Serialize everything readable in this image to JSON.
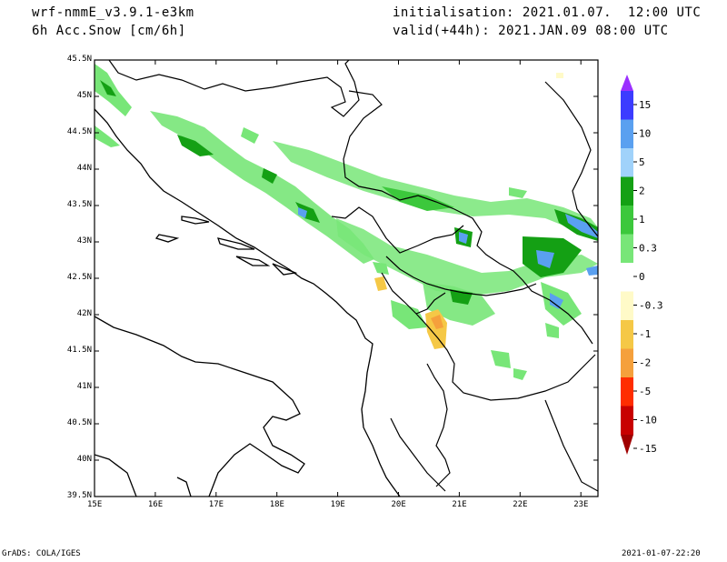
{
  "header": {
    "model": "wrf-nmmE_v3.9.1-e3km",
    "variable": "6h Acc.Snow [cm/6h]",
    "init": "initialisation: 2021.01.07.  12:00 UTC",
    "valid": "valid(+44h): 2021.JAN.09 08:00 UTC"
  },
  "footer": {
    "credit": "GrADS: COLA/IGES",
    "timestamp": "2021-01-07-22:20"
  },
  "map": {
    "lon_labels": [
      "15E",
      "16E",
      "17E",
      "18E",
      "19E",
      "20E",
      "21E",
      "22E",
      "23E"
    ],
    "lat_labels": [
      "45.5N",
      "45N",
      "44.5N",
      "44N",
      "43.5N",
      "43N",
      "42.5N",
      "42N",
      "41.5N",
      "41N",
      "40.5N",
      "40N",
      "39.5N"
    ]
  },
  "colorbar": {
    "labels": [
      "15",
      "10",
      "5",
      "2",
      "1",
      "0.3",
      "0",
      "-0.3",
      "-1",
      "-2",
      "-5",
      "-10",
      "-15"
    ],
    "colors": [
      "#9b30ff",
      "#3c3cff",
      "#5aa0f0",
      "#a0d2fa",
      "#14a014",
      "#3cc83c",
      "#78e678",
      "#ffffff",
      "#fffac8",
      "#f5c846",
      "#f5a03c",
      "#ff2d00",
      "#c80000",
      "#a00000"
    ]
  }
}
